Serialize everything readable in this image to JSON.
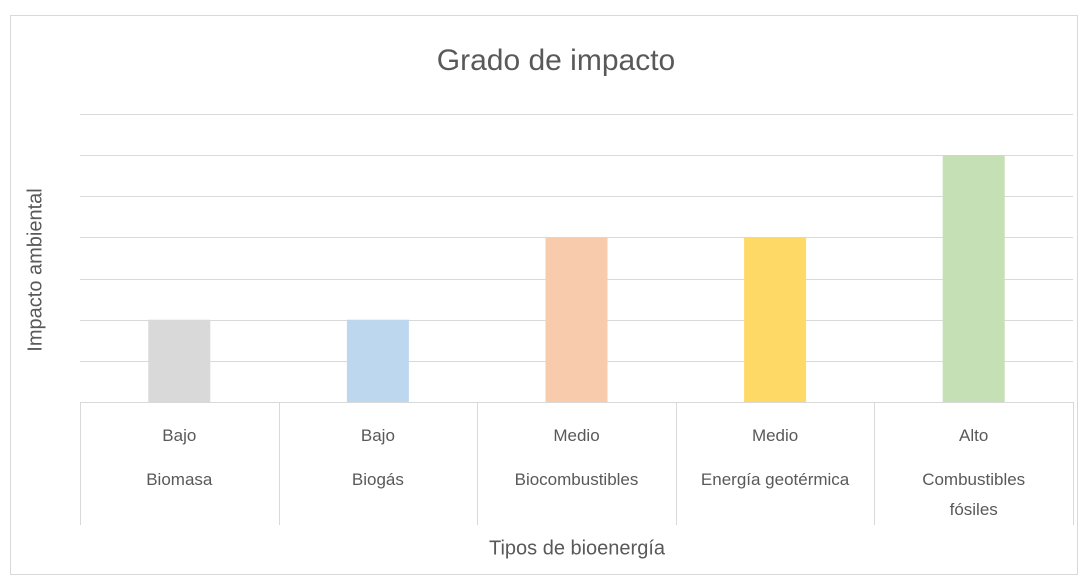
{
  "chart_data": {
    "type": "bar",
    "title": "Grado de impacto",
    "x_label": "Tipos de bioenergía",
    "y_label": "Impacto ambiental",
    "categories": [
      "Biomasa",
      "Biogás",
      "Biocombustibles",
      "Energía geotérmica",
      "Combustibles fósiles"
    ],
    "category_groups": [
      "Bajo",
      "Bajo",
      "Medio",
      "Medio",
      "Alto"
    ],
    "values": [
      2,
      2,
      4,
      4,
      6
    ],
    "colors": [
      "#d9d9d9",
      "#bdd7ee",
      "#f8cbad",
      "#ffd966",
      "#c5e0b4"
    ],
    "ylim": [
      0,
      7
    ],
    "yticks": [
      0,
      1,
      2,
      3,
      4,
      5,
      6,
      7
    ],
    "grid": true
  }
}
